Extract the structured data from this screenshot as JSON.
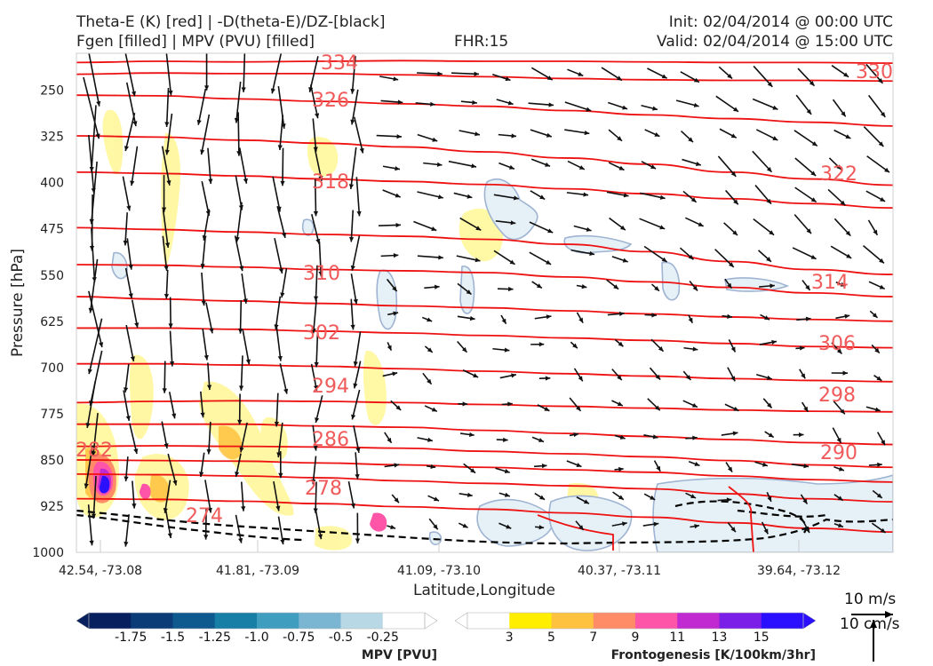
{
  "header": {
    "title_line1": "Theta-E (K) [red] | -D(theta-E)/DZ-[black]",
    "title_line2": "Fgen [filled] | MPV (PVU) [filled]",
    "fhr": "FHR:15",
    "init": "Init: 02/04/2014 @ 00:00 UTC",
    "valid": "Valid: 02/04/2014 @ 15:00 UTC"
  },
  "chart_data": {
    "type": "cross-section",
    "xlabel": "Latitude,Longitude",
    "ylabel": "Pressure [hPa]",
    "x_ticks": [
      "42.54, -73.08",
      "41.81, -73.09",
      "41.09, -73.10",
      "40.37, -73.11",
      "39.64, -73.12"
    ],
    "y_ticks": [
      250,
      325,
      400,
      475,
      550,
      625,
      700,
      775,
      850,
      925,
      1000
    ],
    "ylim": [
      1000,
      190
    ],
    "theta_e_contours": [
      {
        "label": "334",
        "value": 334,
        "p": [
          205,
          203,
          204,
          203,
          202,
          203,
          203,
          204,
          205,
          205,
          206
        ]
      },
      {
        "label": "",
        "value": 330,
        "p": [
          224,
          222,
          223,
          223,
          225,
          228,
          231,
          233,
          234,
          234,
          235
        ]
      },
      {
        "label": "326",
        "value": 326,
        "p": [
          258,
          259,
          264,
          268,
          272,
          276,
          283,
          290,
          296,
          302,
          308
        ]
      },
      {
        "label": "",
        "value": 322,
        "p": [
          324,
          326,
          331,
          336,
          342,
          350,
          360,
          370,
          383,
          394,
          404
        ]
      },
      {
        "label": "318",
        "value": 318,
        "p": [
          383,
          385,
          389,
          394,
          398,
          403,
          410,
          418,
          426,
          434,
          441
        ]
      },
      {
        "label": "",
        "value": 314,
        "p": [
          473,
          476,
          480,
          484,
          487,
          492,
          500,
          512,
          528,
          541,
          549
        ]
      },
      {
        "label": "310",
        "value": 310,
        "p": [
          533,
          534,
          537,
          541,
          543,
          546,
          553,
          561,
          570,
          579,
          585
        ]
      },
      {
        "label": "",
        "value": 306,
        "p": [
          585,
          589,
          592,
          596,
          600,
          603,
          608,
          613,
          618,
          622,
          625
        ]
      },
      {
        "label": "302",
        "value": 302,
        "p": [
          636,
          636,
          638,
          641,
          644,
          648,
          652,
          656,
          661,
          666,
          668
        ]
      },
      {
        "label": "",
        "value": 298,
        "p": [
          694,
          694,
          696,
          698,
          702,
          706,
          710,
          714,
          718,
          721,
          723
        ]
      },
      {
        "label": "294",
        "value": 294,
        "p": [
          757,
          755,
          754,
          755,
          757,
          760,
          763,
          766,
          769,
          771,
          772
        ]
      },
      {
        "label": "",
        "value": 290,
        "p": [
          792,
          792,
          792,
          795,
          797,
          802,
          807,
          812,
          817,
          822,
          825
        ]
      },
      {
        "label": "286",
        "value": 286,
        "p": [
          828,
          827,
          828,
          829,
          831,
          836,
          840,
          845,
          851,
          858,
          862
        ]
      },
      {
        "label": "282",
        "value": 282,
        "p": [
          850,
          851,
          852,
          855,
          858,
          862,
          866,
          870,
          876,
          882,
          886
        ]
      },
      {
        "label": "278",
        "value": 278,
        "p": [
          873,
          874,
          876,
          879,
          884,
          888,
          892,
          897,
          905,
          913,
          918
        ]
      },
      {
        "label": "274",
        "value": 274,
        "p": [
          913,
          914,
          917,
          921,
          926,
          930,
          936,
          943,
          952,
          961,
          967
        ]
      }
    ],
    "mpv_colorbar": {
      "title": "MPV [PVU]",
      "levels": [
        "-1.75",
        "-1.5",
        "-1.25",
        "-1.0",
        "-0.75",
        "-0.5",
        "-0.25"
      ],
      "colors": [
        "#08205e",
        "#0b3c78",
        "#0e5a8e",
        "#177ea6",
        "#3f9dc0",
        "#7ab6d2",
        "#b9d8e5",
        "#ffffff"
      ]
    },
    "fgen_colorbar": {
      "title": "Frontogenesis [K/100km/3hr]",
      "levels": [
        "3",
        "5",
        "7",
        "9",
        "11",
        "13",
        "15"
      ],
      "colors": [
        "#ffffff",
        "#ffee00",
        "#ffc23f",
        "#ff8c66",
        "#ff55a8",
        "#c02ad0",
        "#7a1ee8",
        "#2a10ff"
      ]
    },
    "vector_reference": {
      "u_label": "10 m/s",
      "w_label": "10 cm/s"
    },
    "colors": {
      "theta_e": "#ee1111",
      "contour_label": "#f05a5a",
      "stability": "#000000",
      "mpv_outline": "#9fb3d2"
    }
  }
}
